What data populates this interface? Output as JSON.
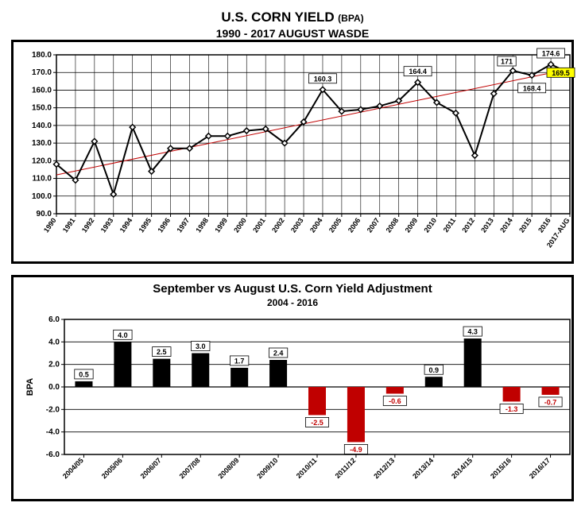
{
  "panel1": {
    "title_main": "U.S. CORN YIELD",
    "title_unit": "(BPA)",
    "subtitle": "1990 - 2017 AUGUST WASDE",
    "chart": {
      "type": "line",
      "background_color": "#ffffff",
      "grid_color": "#000000",
      "border_color": "#000000",
      "ylim": [
        90,
        180
      ],
      "ytick_step": 10,
      "yticks": [
        "90.0",
        "100.0",
        "110.0",
        "120.0",
        "130.0",
        "140.0",
        "150.0",
        "160.0",
        "170.0",
        "180.0"
      ],
      "categories": [
        "1990",
        "1991",
        "1992",
        "1993",
        "1994",
        "1995",
        "1996",
        "1997",
        "1998",
        "1999",
        "2000",
        "2001",
        "2002",
        "2003",
        "2004",
        "2005",
        "2006",
        "2007",
        "2008",
        "2009",
        "2010",
        "2011",
        "2012",
        "2013",
        "2014",
        "2015",
        "2016",
        "2017-AUG"
      ],
      "values": [
        118,
        109,
        131,
        101,
        139,
        114,
        127,
        127,
        134,
        134,
        137,
        138,
        130,
        142,
        160.3,
        148,
        149,
        151,
        154,
        164.4,
        153,
        147,
        123,
        158,
        171,
        168.4,
        174.6,
        169.5
      ],
      "trend": {
        "y_start": 112,
        "y_end": 172,
        "color": "#c00000",
        "width": 1
      },
      "line_color": "#000000",
      "line_width": 2,
      "marker": {
        "shape": "diamond",
        "size": 7,
        "fill": "#ffffff",
        "stroke": "#000000",
        "stroke_width": 1.5
      },
      "data_labels": [
        {
          "i": 14,
          "text": "160.3",
          "box": true
        },
        {
          "i": 19,
          "text": "164.4",
          "box": true
        },
        {
          "i": 24,
          "text": "171",
          "box": true
        },
        {
          "i": 25,
          "text": "168.4",
          "box": true
        },
        {
          "i": 26,
          "text": "174.6",
          "box": true
        },
        {
          "i": 27,
          "text": "169.5",
          "box": true,
          "highlight": "#ffff00"
        }
      ],
      "label_fontsize": 9,
      "axis_fontsize": 10
    }
  },
  "panel2": {
    "title": "September vs August U.S. Corn Yield Adjustment",
    "subtitle": "2004 - 2016",
    "chart": {
      "type": "bar",
      "background_color": "#ffffff",
      "grid_color": "#000000",
      "border_color": "#000000",
      "ylabel": "BPA",
      "ylim": [
        -6,
        6
      ],
      "ytick_step": 2,
      "yticks": [
        "-6.0",
        "-4.0",
        "-2.0",
        "0.0",
        "2.0",
        "4.0",
        "6.0"
      ],
      "categories": [
        "2004/05",
        "2005/06",
        "2006/07",
        "2007/08",
        "2008/09",
        "2009/10",
        "2010/11",
        "2011/12",
        "2012/13",
        "2013/14",
        "2014/15",
        "2015/16",
        "2016/17"
      ],
      "values": [
        0.5,
        4.0,
        2.5,
        3.0,
        1.7,
        2.4,
        -2.5,
        -4.9,
        -0.6,
        0.9,
        4.3,
        -1.3,
        -0.7
      ],
      "bar_width": 0.45,
      "pos_color": "#000000",
      "neg_color": "#c00000",
      "label_box_stroke": "#000000",
      "label_fontsize": 9,
      "axis_fontsize": 10,
      "title_fontsize": 15,
      "subtitle_fontsize": 12
    }
  }
}
